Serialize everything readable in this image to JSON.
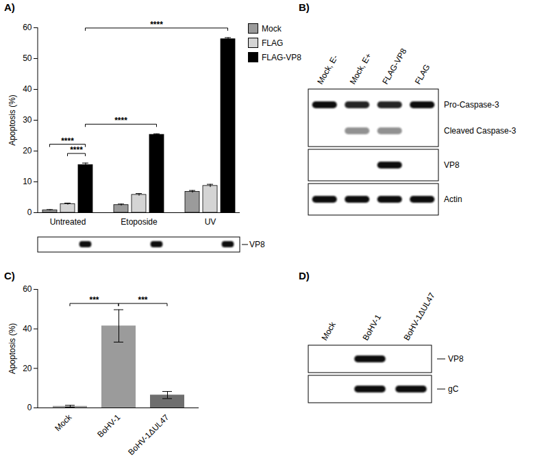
{
  "chart_data": [
    {
      "type": "bar",
      "title": "A)",
      "y_label": "Apoptosis (%)",
      "categories": [
        "Untreated",
        "Etoposide",
        "UV"
      ],
      "series": [
        {
          "name": "Mock",
          "color": "#9b9b9b",
          "values": [
            0.8,
            2.5,
            6.8
          ],
          "errors": [
            0.2,
            0.3,
            0.4
          ]
        },
        {
          "name": "FLAG",
          "color": "#d4d4d4",
          "values": [
            2.8,
            5.8,
            8.7
          ],
          "errors": [
            0.3,
            0.4,
            0.5
          ]
        },
        {
          "name": "FLAG-VP8",
          "color": "#000000",
          "values": [
            15.5,
            25.3,
            56.3
          ],
          "errors": [
            0.6,
            0.3,
            0.5
          ]
        }
      ],
      "ylim": [
        0,
        60
      ],
      "yticks": [
        0,
        10,
        20,
        30,
        40,
        50,
        60
      ],
      "grid": false,
      "legend": "top-right",
      "annotations": [
        {
          "text": "****",
          "from": [
            "Untreated",
            "FLAG"
          ],
          "to": [
            "Untreated",
            "FLAG-VP8"
          ]
        },
        {
          "text": "****",
          "from": [
            "Untreated",
            "Mock"
          ],
          "to": [
            "Untreated",
            "FLAG-VP8"
          ]
        },
        {
          "text": "****",
          "from": [
            "Untreated",
            "FLAG-VP8"
          ],
          "to": [
            "Etoposide",
            "FLAG-VP8"
          ]
        },
        {
          "text": "****",
          "from": [
            "Untreated",
            "FLAG-VP8"
          ],
          "to": [
            "UV",
            "FLAG-VP8"
          ]
        }
      ],
      "blot": {
        "label": "VP8",
        "bands": [
          [
            0,
            0,
            1
          ],
          [
            0,
            0,
            1
          ],
          [
            0,
            0,
            1
          ]
        ]
      }
    },
    {
      "type": "bar",
      "title": "C)",
      "y_label": "Apoptosis (%)",
      "categories": [
        "Mock",
        "BoHV-1",
        "BoHV-1ΔUL47"
      ],
      "values": [
        0.8,
        41.5,
        6.5
      ],
      "errors": [
        0.5,
        8.2,
        1.8
      ],
      "colors": [
        "#9b9b9b",
        "#9b9b9b",
        "#6e6e6e"
      ],
      "ylim": [
        0,
        60
      ],
      "yticks": [
        0,
        20,
        40,
        60
      ],
      "grid": false,
      "annotations": [
        {
          "text": "***",
          "from": "Mock",
          "to": "BoHV-1"
        },
        {
          "text": "***",
          "from": "BoHV-1",
          "to": "BoHV-1ΔUL47"
        }
      ]
    }
  ],
  "blots": [
    {
      "title": "B)",
      "lanes": [
        "Mock, E-",
        "Mock, E+",
        "FLAG-VP8",
        "FLAG"
      ],
      "panels": [
        {
          "rows": [
            {
              "label": "Pro-Caspase-3",
              "bands": [
                1,
                0.9,
                0.9,
                1
              ]
            },
            {
              "label": "Cleaved Caspase-3",
              "bands": [
                0,
                0.45,
                0.45,
                0
              ]
            }
          ]
        },
        {
          "rows": [
            {
              "label": "VP8",
              "bands": [
                0,
                0,
                1,
                0
              ]
            }
          ]
        },
        {
          "rows": [
            {
              "label": "Actin",
              "bands": [
                1,
                1,
                1,
                1
              ]
            }
          ]
        }
      ]
    },
    {
      "title": "D)",
      "lanes": [
        "Mock",
        "BoHV-1",
        "BoHV-1ΔUL47"
      ],
      "panels": [
        {
          "rows": [
            {
              "label": "VP8",
              "bands": [
                0,
                1,
                0
              ]
            }
          ]
        },
        {
          "rows": [
            {
              "label": "gC",
              "bands": [
                0,
                1,
                1
              ]
            }
          ]
        }
      ]
    }
  ]
}
